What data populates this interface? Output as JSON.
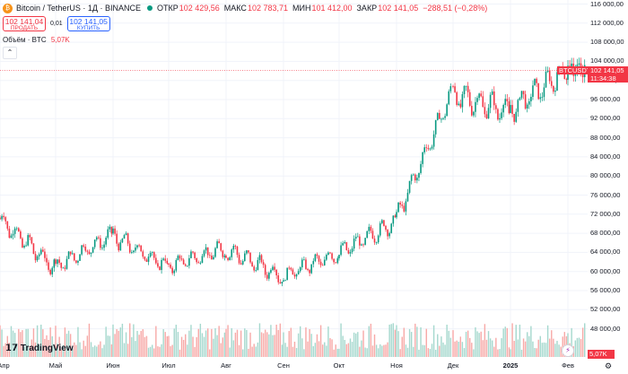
{
  "header": {
    "symbol_title": "Bitcoin / TetherUS · 1Д · BINANCE",
    "coin_glyph": "₿",
    "open_key": "ОТКР",
    "open_val": "102 429,56",
    "high_key": "МАКС",
    "high_val": "102 783,71",
    "low_key": "МИН",
    "low_val": "101 412,00",
    "close_key": "ЗАКР",
    "close_val": "102 141,05",
    "change_val": "−288,51 (−0,28%)"
  },
  "trade": {
    "sell_price": "102 141,04",
    "sell_label": "ПРОДАТЬ",
    "spread": "0,01",
    "buy_price": "102 141,05",
    "buy_label": "КУПИТЬ"
  },
  "volume": {
    "label": "Объём · BTC",
    "value": "5,07K",
    "collapse_glyph": "⌃"
  },
  "price_axis": [
    "116 000,00",
    "112 000,00",
    "108 000,00",
    "104 000,00",
    "100 000,00",
    "96 000,00",
    "92 000,00",
    "88 000,00",
    "84 000,00",
    "80 000,00",
    "76 000,00",
    "72 000,00",
    "68 000,00",
    "64 000,00",
    "60 000,00",
    "56 000,00",
    "52 000,00",
    "48 000,00"
  ],
  "time_axis": [
    "Апр",
    "Май",
    "Июн",
    "Июл",
    "Авг",
    "Сен",
    "Окт",
    "Ноя",
    "Дек",
    "2025",
    "Фев"
  ],
  "price_tag": {
    "symbol": "BTCUSDT",
    "price": "102 141,05",
    "countdown": "11:34:38"
  },
  "volume_tag": "5,07K",
  "branding": {
    "logo_glyph": "𝟭𝟳",
    "name": "TradingView"
  },
  "footer": {
    "bolt_glyph": "⚡",
    "gear_glyph": "⚙"
  },
  "colors": {
    "up": "#089981",
    "down": "#f23645",
    "vol_up": "#a5d8ce",
    "vol_down": "#f7a9a7",
    "grid": "#f0f3fa"
  },
  "chart_data": {
    "type": "candlestick",
    "symbol": "BTCUSDT",
    "interval": "1D",
    "x_range": [
      "Апр",
      "Фев"
    ],
    "ylim": [
      46000,
      117000
    ],
    "current_price": 102141.05,
    "grid": true,
    "monthly_closes": [
      {
        "month": "Апр",
        "value": 71300
      },
      {
        "month": "Май",
        "value": 60700
      },
      {
        "month": "Июн",
        "value": 67600
      },
      {
        "month": "Июл",
        "value": 61000
      },
      {
        "month": "Авг",
        "value": 64800
      },
      {
        "month": "Сен",
        "value": 59000
      },
      {
        "month": "Окт",
        "value": 63700
      },
      {
        "month": "Ноя",
        "value": 70300
      },
      {
        "month": "Дек",
        "value": 97000
      },
      {
        "month": "2025",
        "value": 93600
      },
      {
        "month": "Фев",
        "value": 102141
      }
    ]
  }
}
